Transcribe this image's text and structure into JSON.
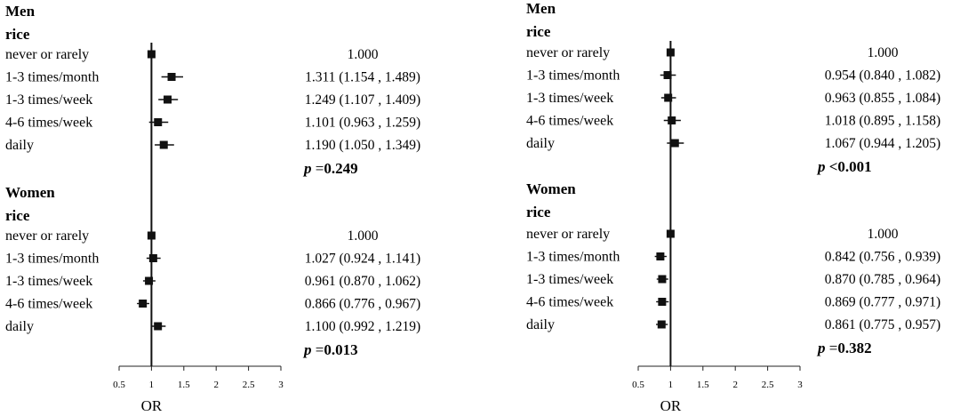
{
  "chart_data": [
    {
      "type": "forest",
      "xlabel": "OR",
      "xlim": [
        0.5,
        3
      ],
      "xticks": [
        "0.5",
        "1",
        "1.5",
        "2",
        "2.5",
        "3"
      ],
      "reference_line": 1,
      "groups": [
        {
          "sex": "Men",
          "food": "rice",
          "rows": [
            {
              "label": "never or rarely",
              "or": 1.0,
              "lo": 1.0,
              "hi": 1.0,
              "text": "1.000"
            },
            {
              "label": "1-3 times/month",
              "or": 1.311,
              "lo": 1.154,
              "hi": 1.489,
              "text": "1.311 (1.154 , 1.489)"
            },
            {
              "label": "1-3 times/week",
              "or": 1.249,
              "lo": 1.107,
              "hi": 1.409,
              "text": "1.249 (1.107 , 1.409)"
            },
            {
              "label": "4-6 times/week",
              "or": 1.101,
              "lo": 0.963,
              "hi": 1.259,
              "text": "1.101 (0.963 , 1.259)"
            },
            {
              "label": "daily",
              "or": 1.19,
              "lo": 1.05,
              "hi": 1.349,
              "text": "1.190 (1.050 , 1.349)"
            }
          ],
          "p_prefix": "p",
          "p_rest": " =",
          "p_value": "0.249"
        },
        {
          "sex": "Women",
          "food": "rice",
          "rows": [
            {
              "label": "never or rarely",
              "or": 1.0,
              "lo": 1.0,
              "hi": 1.0,
              "text": "1.000"
            },
            {
              "label": "1-3 times/month",
              "or": 1.027,
              "lo": 0.924,
              "hi": 1.141,
              "text": "1.027 (0.924 , 1.141)"
            },
            {
              "label": "1-3 times/week",
              "or": 0.961,
              "lo": 0.87,
              "hi": 1.062,
              "text": "0.961 (0.870 , 1.062)"
            },
            {
              "label": "4-6 times/week",
              "or": 0.866,
              "lo": 0.776,
              "hi": 0.967,
              "text": "0.866 (0.776 , 0.967)"
            },
            {
              "label": "daily",
              "or": 1.1,
              "lo": 0.992,
              "hi": 1.219,
              "text": "1.100 (0.992 , 1.219)"
            }
          ],
          "p_prefix": "p",
          "p_rest": " =",
          "p_value": "0.013"
        }
      ]
    },
    {
      "type": "forest",
      "xlabel": "OR",
      "xlim": [
        0.5,
        3
      ],
      "xticks": [
        "0.5",
        "1",
        "1.5",
        "2",
        "2.5",
        "3"
      ],
      "reference_line": 1,
      "groups": [
        {
          "sex": "Men",
          "food": "rice",
          "rows": [
            {
              "label": "never or rarely",
              "or": 1.0,
              "lo": 1.0,
              "hi": 1.0,
              "text": "1.000"
            },
            {
              "label": "1-3 times/month",
              "or": 0.954,
              "lo": 0.84,
              "hi": 1.082,
              "text": "0.954 (0.840 , 1.082)"
            },
            {
              "label": "1-3 times/week",
              "or": 0.963,
              "lo": 0.855,
              "hi": 1.084,
              "text": "0.963 (0.855 , 1.084)"
            },
            {
              "label": "4-6 times/week",
              "or": 1.018,
              "lo": 0.895,
              "hi": 1.158,
              "text": "1.018 (0.895 , 1.158)"
            },
            {
              "label": "daily",
              "or": 1.067,
              "lo": 0.944,
              "hi": 1.205,
              "text": "1.067 (0.944 , 1.205)"
            }
          ],
          "p_prefix": "p",
          "p_rest": " ",
          "p_value": "<0.001"
        },
        {
          "sex": "Women",
          "food": "rice",
          "rows": [
            {
              "label": "never or rarely",
              "or": 1.0,
              "lo": 1.0,
              "hi": 1.0,
              "text": "1.000"
            },
            {
              "label": "1-3 times/month",
              "or": 0.842,
              "lo": 0.756,
              "hi": 0.939,
              "text": "0.842 (0.756 , 0.939)"
            },
            {
              "label": "1-3 times/week",
              "or": 0.87,
              "lo": 0.785,
              "hi": 0.964,
              "text": "0.870 (0.785 , 0.964)"
            },
            {
              "label": "4-6 times/week",
              "or": 0.869,
              "lo": 0.777,
              "hi": 0.971,
              "text": "0.869 (0.777 , 0.971)"
            },
            {
              "label": "daily",
              "or": 0.861,
              "lo": 0.775,
              "hi": 0.957,
              "text": "0.861 (0.775 , 0.957)"
            }
          ],
          "p_prefix": "p",
          "p_rest": " =",
          "p_value": "0.382"
        }
      ]
    }
  ]
}
